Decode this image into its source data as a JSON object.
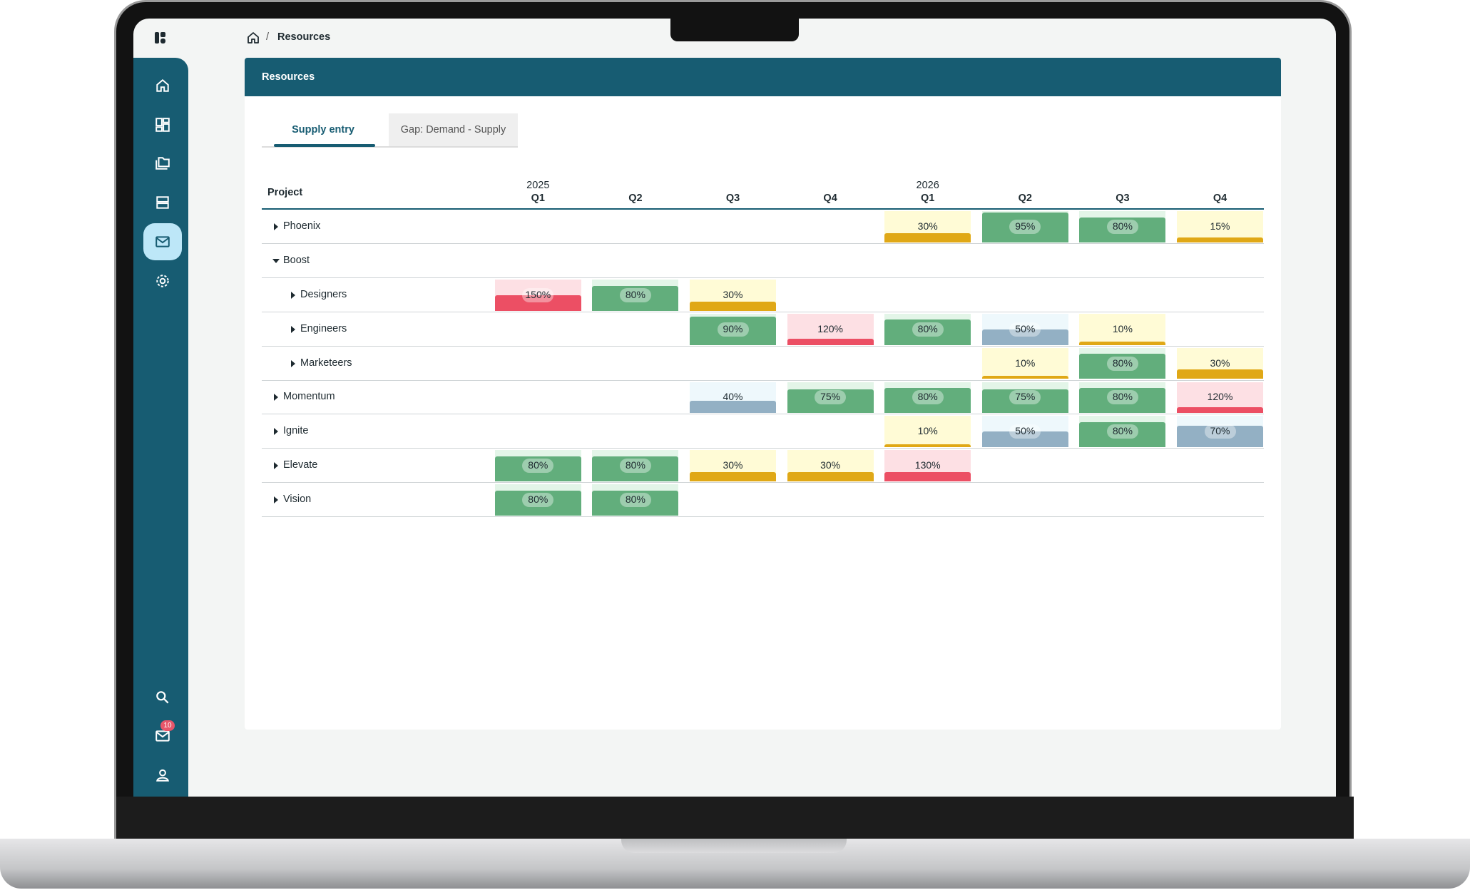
{
  "breadcrumb": {
    "current": "Resources"
  },
  "panel": {
    "title": "Resources"
  },
  "tabs": {
    "items": [
      "Supply entry",
      "Gap: Demand - Supply"
    ],
    "active": 0
  },
  "sidebar": {
    "notifications": 10
  },
  "table": {
    "header": {
      "project": "Project",
      "columns": [
        {
          "year": "2025",
          "quarter": "Q1"
        },
        {
          "year": null,
          "quarter": "Q2"
        },
        {
          "year": null,
          "quarter": "Q3"
        },
        {
          "year": null,
          "quarter": "Q4"
        },
        {
          "year": "2026",
          "quarter": "Q1"
        },
        {
          "year": null,
          "quarter": "Q2"
        },
        {
          "year": null,
          "quarter": "Q3"
        },
        {
          "year": null,
          "quarter": "Q4"
        }
      ]
    },
    "rows": [
      {
        "name": "Phoenix",
        "level": 0,
        "expanded": false,
        "cells": [
          null,
          null,
          null,
          null,
          {
            "value": 30,
            "label": "30%"
          },
          {
            "value": 95,
            "label": "95%"
          },
          {
            "value": 80,
            "label": "80%"
          },
          {
            "value": 15,
            "label": "15%"
          }
        ]
      },
      {
        "name": "Boost",
        "level": 0,
        "expanded": true,
        "cells": [
          null,
          null,
          null,
          null,
          null,
          null,
          null,
          null
        ]
      },
      {
        "name": "Designers",
        "level": 1,
        "expanded": false,
        "cells": [
          {
            "value": 150,
            "label": "150%"
          },
          {
            "value": 80,
            "label": "80%"
          },
          {
            "value": 30,
            "label": "30%"
          },
          null,
          null,
          null,
          null,
          null
        ]
      },
      {
        "name": "Engineers",
        "level": 1,
        "expanded": false,
        "cells": [
          null,
          null,
          {
            "value": 90,
            "label": "90%"
          },
          {
            "value": 120,
            "label": "120%"
          },
          {
            "value": 80,
            "label": "80%"
          },
          {
            "value": 50,
            "label": "50%"
          },
          {
            "value": 10,
            "label": "10%"
          },
          null
        ]
      },
      {
        "name": "Marketeers",
        "level": 1,
        "expanded": false,
        "cells": [
          null,
          null,
          null,
          null,
          null,
          {
            "value": 10,
            "label": "10%"
          },
          {
            "value": 80,
            "label": "80%"
          },
          {
            "value": 30,
            "label": "30%"
          }
        ]
      },
      {
        "name": "Momentum",
        "level": 0,
        "expanded": false,
        "cells": [
          null,
          null,
          {
            "value": 40,
            "label": "40%"
          },
          {
            "value": 75,
            "label": "75%"
          },
          {
            "value": 80,
            "label": "80%"
          },
          {
            "value": 75,
            "label": "75%"
          },
          {
            "value": 80,
            "label": "80%"
          },
          {
            "value": 120,
            "label": "120%"
          }
        ]
      },
      {
        "name": "Ignite",
        "level": 0,
        "expanded": false,
        "cells": [
          null,
          null,
          null,
          null,
          {
            "value": 10,
            "label": "10%"
          },
          {
            "value": 50,
            "label": "50%"
          },
          {
            "value": 80,
            "label": "80%"
          },
          {
            "value": 70,
            "label": "70%"
          }
        ]
      },
      {
        "name": "Elevate",
        "level": 0,
        "expanded": false,
        "cells": [
          {
            "value": 80,
            "label": "80%"
          },
          {
            "value": 80,
            "label": "80%"
          },
          {
            "value": 30,
            "label": "30%"
          },
          {
            "value": 30,
            "label": "30%"
          },
          {
            "value": 130,
            "label": "130%"
          },
          null,
          null,
          null
        ]
      },
      {
        "name": "Vision",
        "level": 0,
        "expanded": false,
        "cells": [
          {
            "value": 80,
            "label": "80%"
          },
          {
            "value": 80,
            "label": "80%"
          },
          null,
          null,
          null,
          null,
          null,
          null
        ]
      }
    ]
  }
}
